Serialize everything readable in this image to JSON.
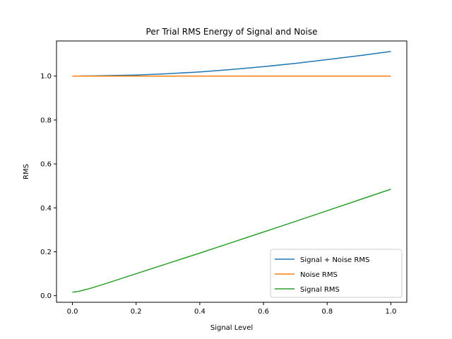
{
  "chart_data": {
    "type": "line",
    "title": "Per Trial RMS Energy of Signal and Noise",
    "xlabel": "Signal Level",
    "ylabel": "RMS",
    "xlim": [
      -0.05,
      1.05
    ],
    "ylim": [
      -0.03,
      1.16
    ],
    "xticks": [
      0.0,
      0.2,
      0.4,
      0.6,
      0.8,
      1.0
    ],
    "xtick_labels": [
      "0.0",
      "0.2",
      "0.4",
      "0.6",
      "0.8",
      "1.0"
    ],
    "yticks": [
      0.0,
      0.2,
      0.4,
      0.6,
      0.8,
      1.0
    ],
    "ytick_labels": [
      "0.0",
      "0.2",
      "0.4",
      "0.6",
      "0.8",
      "1.0"
    ],
    "grid": false,
    "legend_position": "lower-right",
    "x": [
      0.0,
      0.02,
      0.04,
      0.06,
      0.1,
      0.2,
      0.3,
      0.4,
      0.5,
      0.6,
      0.7,
      0.8,
      0.9,
      1.0
    ],
    "series": [
      {
        "name": "Signal + Noise RMS",
        "color": "#1f77b4",
        "values": [
          1.0,
          1.0,
          1.001,
          1.001,
          1.002,
          1.005,
          1.011,
          1.019,
          1.03,
          1.043,
          1.058,
          1.075,
          1.093,
          1.112
        ]
      },
      {
        "name": "Noise RMS",
        "color": "#ff7f0e",
        "values": [
          1.0,
          1.0,
          1.0,
          1.0,
          1.0,
          1.0,
          1.0,
          1.0,
          1.0,
          1.0,
          1.0,
          1.0,
          1.0,
          1.0
        ]
      },
      {
        "name": "Signal RMS",
        "color": "#2ca02c",
        "values": [
          0.016,
          0.02,
          0.027,
          0.035,
          0.053,
          0.1,
          0.147,
          0.194,
          0.242,
          0.29,
          0.338,
          0.387,
          0.436,
          0.485
        ]
      }
    ]
  }
}
